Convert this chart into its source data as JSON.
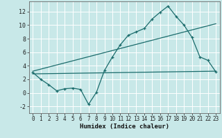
{
  "xlabel": "Humidex (Indice chaleur)",
  "bg_color": "#c8e8e8",
  "grid_color": "#b0d8d8",
  "line_color": "#1a6b6b",
  "xlim": [
    -0.5,
    23.5
  ],
  "ylim": [
    -3,
    13.5
  ],
  "yticks": [
    -2,
    0,
    2,
    4,
    6,
    8,
    10,
    12
  ],
  "xticks": [
    0,
    1,
    2,
    3,
    4,
    5,
    6,
    7,
    8,
    9,
    10,
    11,
    12,
    13,
    14,
    15,
    16,
    17,
    18,
    19,
    20,
    21,
    22,
    23
  ],
  "line1_x": [
    0,
    1,
    2,
    3,
    4,
    5,
    6,
    7,
    8,
    9,
    10,
    11,
    12,
    13,
    14,
    15,
    16,
    17,
    18,
    19,
    20,
    21,
    22,
    23
  ],
  "line1_y": [
    3.0,
    2.0,
    1.2,
    0.3,
    0.6,
    0.7,
    0.5,
    -1.7,
    0.1,
    3.3,
    5.3,
    7.1,
    8.5,
    9.0,
    9.5,
    10.9,
    11.9,
    12.8,
    11.3,
    10.0,
    8.2,
    5.3,
    4.8,
    3.1
  ],
  "line2_x": [
    0,
    23
  ],
  "line2_y": [
    2.8,
    3.2
  ],
  "line3_x": [
    0,
    23
  ],
  "line3_y": [
    3.2,
    10.2
  ]
}
